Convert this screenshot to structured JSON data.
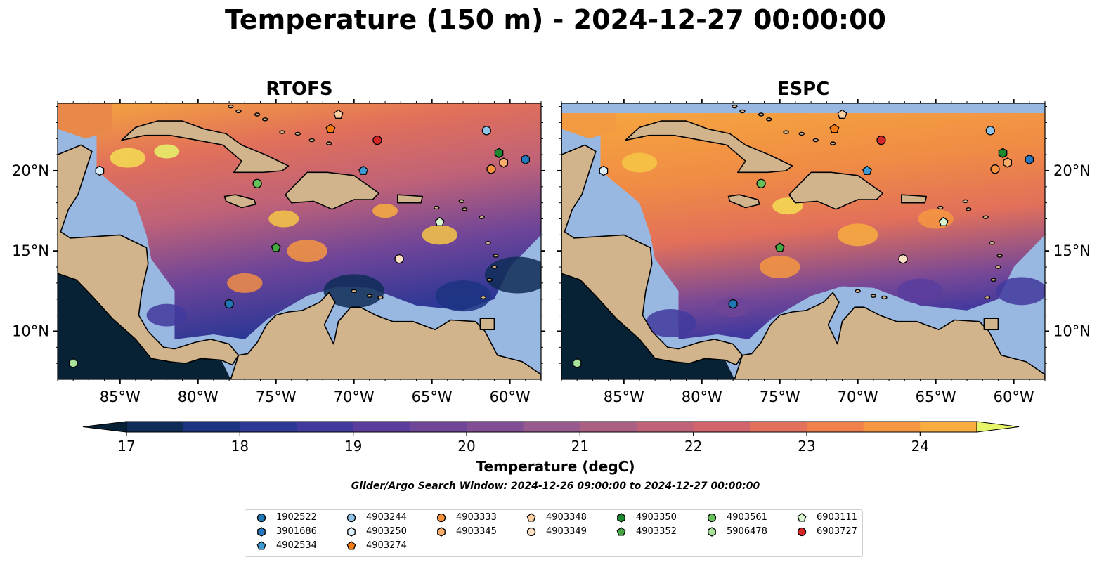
{
  "title": "Temperature (150 m) - 2024-12-27 00:00:00",
  "panels": [
    {
      "title": "RTOFS",
      "model": "rtofs"
    },
    {
      "title": "ESPC",
      "model": "espc"
    }
  ],
  "map": {
    "lon_range": [
      -89,
      -58
    ],
    "lat_range": [
      7,
      24.2
    ],
    "lon_ticks": [
      "85°W",
      "80°W",
      "75°W",
      "70°W",
      "65°W",
      "60°W"
    ],
    "lon_tick_values": [
      -85,
      -80,
      -75,
      -70,
      -65,
      -60
    ],
    "lat_ticks": [
      "20°N",
      "15°N",
      "10°N"
    ],
    "lat_tick_values": [
      20,
      15,
      10
    ],
    "colors": {
      "ocean": "#98b7e1",
      "land": "#d2b48c",
      "pacific": "#072135"
    }
  },
  "colorbar": {
    "label": "Temperature (degC)",
    "min": 16.6,
    "max": 24.6,
    "ticks": [
      "17",
      "18",
      "19",
      "20",
      "21",
      "22",
      "23",
      "24"
    ],
    "tick_values": [
      17,
      18,
      19,
      20,
      21,
      22,
      23,
      24
    ],
    "colors": [
      "#062035",
      "#0f2d57",
      "#1c3481",
      "#2c3796",
      "#42399e",
      "#5a3d9d",
      "#6f4598",
      "#824e93",
      "#97598e",
      "#ab5f82",
      "#bf6278",
      "#d2656c",
      "#e2705a",
      "#f0804c",
      "#f69741",
      "#f8ad3e",
      "#f6c645",
      "#f3dd54",
      "#e6f56a"
    ]
  },
  "search_window": "Glider/Argo Search Window: 2024-12-26 09:00:00 to 2024-12-27 00:00:00",
  "floats": [
    {
      "id": "1902522",
      "color": "#1f77b4",
      "shape": "circle",
      "lon": -78.0,
      "lat": 11.7
    },
    {
      "id": "3901686",
      "color": "#2679c0",
      "shape": "hexagon",
      "lon": -59.0,
      "lat": 20.7
    },
    {
      "id": "4902534",
      "color": "#3d9bd4",
      "shape": "pentagon",
      "lon": -69.4,
      "lat": 20.0
    },
    {
      "id": "4903244",
      "color": "#8fc3e8",
      "shape": "circle",
      "lon": -61.5,
      "lat": 22.5
    },
    {
      "id": "4903250",
      "color": "#dbeefa",
      "shape": "hexagon",
      "lon": -86.3,
      "lat": 20.0
    },
    {
      "id": "4903274",
      "color": "#f47b10",
      "shape": "pentagon",
      "lon": -71.5,
      "lat": 22.6
    },
    {
      "id": "4903333",
      "color": "#f9923c",
      "shape": "circle",
      "lon": -61.2,
      "lat": 20.1
    },
    {
      "id": "4903345",
      "color": "#fbad6b",
      "shape": "hexagon",
      "lon": -60.4,
      "lat": 20.5
    },
    {
      "id": "4903348",
      "color": "#fdd0a2",
      "shape": "pentagon",
      "lon": -71.0,
      "lat": 23.5
    },
    {
      "id": "4903349",
      "color": "#fde0c5",
      "shape": "circle",
      "lon": -67.1,
      "lat": 14.5
    },
    {
      "id": "4903350",
      "color": "#1b8a2e",
      "shape": "hexagon",
      "lon": -60.7,
      "lat": 21.1
    },
    {
      "id": "4903352",
      "color": "#45a843",
      "shape": "pentagon",
      "lon": -75.0,
      "lat": 15.2
    },
    {
      "id": "4903561",
      "color": "#66c05a",
      "shape": "circle",
      "lon": -76.2,
      "lat": 19.2
    },
    {
      "id": "5906478",
      "color": "#a9e39b",
      "shape": "hexagon",
      "lon": -88.0,
      "lat": 8.0
    },
    {
      "id": "6903111",
      "color": "#d7f5d0",
      "shape": "pentagon",
      "lon": -64.5,
      "lat": 16.8
    },
    {
      "id": "6903727",
      "color": "#d62728",
      "shape": "circle",
      "lon": -68.5,
      "lat": 21.9
    }
  ]
}
